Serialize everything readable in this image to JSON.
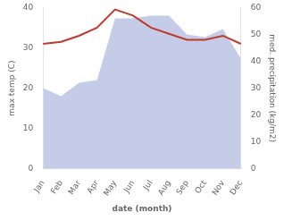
{
  "chart_data": {
    "type": "line",
    "xlabel": "date (month)",
    "ylabel": "max temp (C)",
    "y2label": "med. precipitation (kg/m2)",
    "categories": [
      "Jan",
      "Feb",
      "Mar",
      "Apr",
      "May",
      "Jun",
      "Jul",
      "Aug",
      "Sep",
      "Oct",
      "Nov",
      "Dec"
    ],
    "series": [
      {
        "type": "area",
        "axis": "y2",
        "color": "#c5cce8",
        "values": [
          30,
          27,
          32,
          33,
          56,
          56,
          57,
          57,
          50,
          49,
          52,
          41
        ]
      },
      {
        "type": "line",
        "color": "#c0392b",
        "values": [
          31,
          31.5,
          33,
          35,
          39.5,
          38,
          35,
          33.5,
          32,
          32,
          33,
          31
        ]
      }
    ],
    "ylim": [
      0,
      40
    ],
    "yticks": [
      0,
      10,
      20,
      30,
      40
    ],
    "y2lim": [
      0,
      60
    ],
    "y2ticks": [
      0,
      10,
      20,
      30,
      40,
      50,
      60
    ],
    "grid": false
  }
}
